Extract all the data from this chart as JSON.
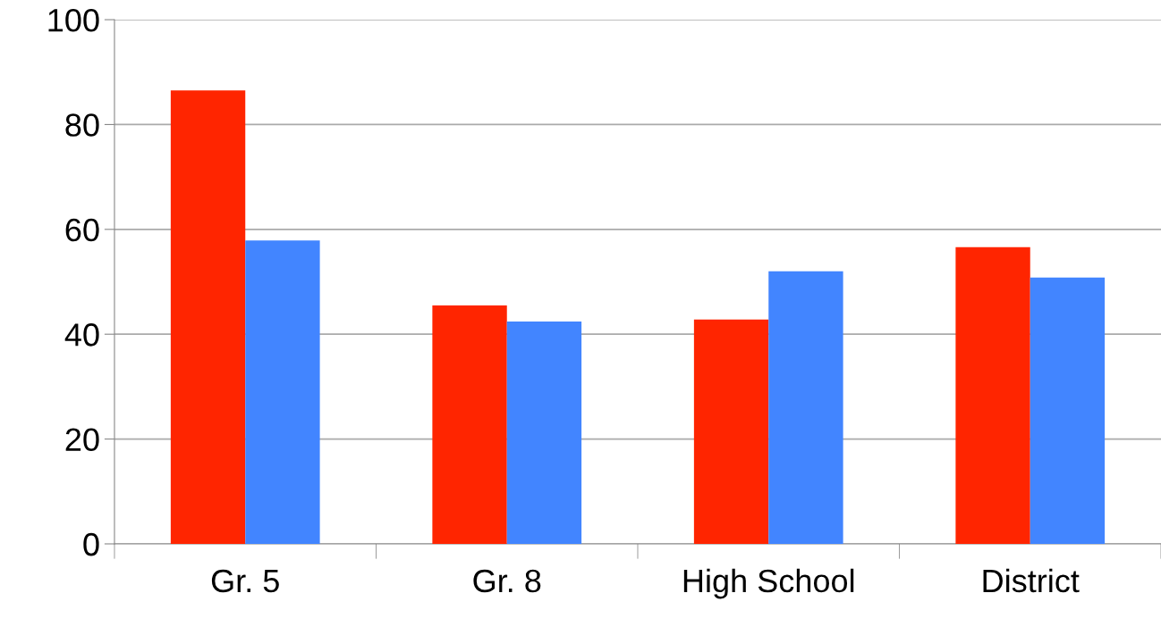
{
  "chart_data": {
    "type": "bar",
    "categories": [
      "Gr. 5",
      "Gr. 8",
      "High School",
      "District"
    ],
    "series": [
      {
        "color": "#ff2500",
        "values": [
          86.5,
          45.5,
          42.8,
          56.6
        ]
      },
      {
        "color": "#4285ff",
        "values": [
          57.9,
          42.4,
          52.0,
          50.8
        ]
      }
    ],
    "ylim": [
      0,
      100
    ],
    "yticks": [
      0,
      20,
      40,
      60,
      80,
      100
    ],
    "grid": "y"
  }
}
